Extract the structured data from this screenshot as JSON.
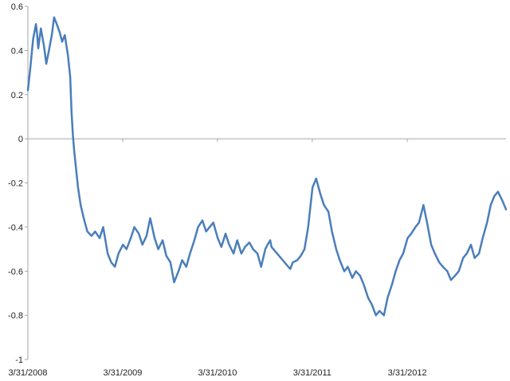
{
  "chart_data": {
    "type": "line",
    "title": "",
    "xlabel": "",
    "ylabel": "",
    "ylim": [
      -1,
      0.6
    ],
    "yticks": [
      -1,
      -0.8,
      -0.6,
      -0.4,
      -0.2,
      0,
      0.2,
      0.4,
      0.6
    ],
    "ytick_labels": [
      "-1",
      "-0.8",
      "-0.6",
      "-0.4",
      "-0.2",
      "0",
      "0.2",
      "0.4",
      "0.6"
    ],
    "x_dates": [
      "2008-03-31",
      "2009-03-31",
      "2010-03-31",
      "2011-03-31",
      "2012-03-31"
    ],
    "xtick_labels": [
      "3/31/2008",
      "3/31/2009",
      "3/31/2010",
      "3/31/2011",
      "3/31/2012"
    ],
    "xlim": [
      "2008-03-31",
      "2013-04-15"
    ],
    "grid": false,
    "legend": "none",
    "colors": {
      "series": "#4a7ebb",
      "axis": "#a6a6a6"
    },
    "series": [
      {
        "x": [
          "2008-03-31",
          "2008-04-10",
          "2008-04-20",
          "2008-05-01",
          "2008-05-05",
          "2008-05-10",
          "2008-05-20",
          "2008-06-01",
          "2008-06-10",
          "2008-06-20",
          "2008-07-01",
          "2008-07-10",
          "2008-07-20",
          "2008-08-01",
          "2008-08-10",
          "2008-08-20",
          "2008-09-01",
          "2008-09-10",
          "2008-09-15",
          "2008-09-20",
          "2008-09-25",
          "2008-10-01",
          "2008-10-10",
          "2008-10-20",
          "2008-11-01",
          "2008-11-15",
          "2008-12-01",
          "2008-12-15",
          "2009-01-01",
          "2009-01-15",
          "2009-02-01",
          "2009-02-15",
          "2009-03-01",
          "2009-03-15",
          "2009-04-01",
          "2009-04-15",
          "2009-05-01",
          "2009-05-15",
          "2009-06-01",
          "2009-06-15",
          "2009-07-01",
          "2009-07-15",
          "2009-08-01",
          "2009-08-15",
          "2009-09-01",
          "2009-09-15",
          "2009-10-01",
          "2009-10-15",
          "2009-11-01",
          "2009-11-15",
          "2009-12-01",
          "2009-12-15",
          "2010-01-01",
          "2010-01-15",
          "2010-02-01",
          "2010-02-15",
          "2010-03-01",
          "2010-03-15",
          "2010-04-01",
          "2010-04-15",
          "2010-05-01",
          "2010-05-15",
          "2010-06-01",
          "2010-06-15",
          "2010-07-01",
          "2010-07-15",
          "2010-08-01",
          "2010-08-15",
          "2010-09-01",
          "2010-09-15",
          "2010-10-01",
          "2010-10-10",
          "2010-10-20",
          "2010-10-25",
          "2011-01-05",
          "2011-01-15",
          "2011-02-01",
          "2011-02-15",
          "2011-03-01",
          "2011-03-15",
          "2011-04-01",
          "2011-04-15",
          "2011-05-01",
          "2011-05-15",
          "2011-06-01",
          "2011-06-15",
          "2011-07-01",
          "2011-07-15",
          "2011-08-01",
          "2011-08-15",
          "2011-09-01",
          "2011-09-15",
          "2011-10-01",
          "2011-10-15",
          "2011-11-01",
          "2011-11-15",
          "2011-12-01",
          "2011-12-15",
          "2012-01-01",
          "2012-01-15",
          "2012-02-01",
          "2012-02-15",
          "2012-03-01",
          "2012-03-15",
          "2012-04-01",
          "2012-04-15",
          "2012-05-01",
          "2012-05-15",
          "2012-06-01",
          "2012-06-15",
          "2012-07-01",
          "2012-07-15",
          "2012-08-01",
          "2012-08-15",
          "2012-09-01",
          "2012-09-15",
          "2012-10-01",
          "2012-10-15",
          "2012-11-01",
          "2012-11-15",
          "2012-12-01",
          "2012-12-15",
          "2013-01-01",
          "2013-01-15",
          "2013-02-01",
          "2013-02-15",
          "2013-03-01",
          "2013-03-15",
          "2013-04-01",
          "2013-04-15"
        ],
        "y": [
          0.22,
          0.33,
          0.45,
          0.52,
          0.48,
          0.41,
          0.5,
          0.42,
          0.34,
          0.4,
          0.47,
          0.55,
          0.52,
          0.48,
          0.44,
          0.47,
          0.38,
          0.28,
          0.12,
          0.02,
          -0.05,
          -0.12,
          -0.22,
          -0.3,
          -0.36,
          -0.42,
          -0.44,
          -0.42,
          -0.45,
          -0.4,
          -0.52,
          -0.56,
          -0.58,
          -0.52,
          -0.48,
          -0.5,
          -0.45,
          -0.4,
          -0.43,
          -0.48,
          -0.44,
          -0.36,
          -0.45,
          -0.5,
          -0.46,
          -0.53,
          -0.56,
          -0.65,
          -0.6,
          -0.55,
          -0.58,
          -0.52,
          -0.46,
          -0.4,
          -0.37,
          -0.42,
          -0.4,
          -0.38,
          -0.45,
          -0.49,
          -0.43,
          -0.48,
          -0.52,
          -0.46,
          -0.52,
          -0.49,
          -0.47,
          -0.5,
          -0.52,
          -0.58,
          -0.5,
          -0.48,
          -0.46,
          -0.49,
          -0.59,
          -0.56,
          -0.55,
          -0.53,
          -0.5,
          -0.4,
          -0.22,
          -0.18,
          -0.25,
          -0.3,
          -0.33,
          -0.42,
          -0.5,
          -0.55,
          -0.6,
          -0.58,
          -0.63,
          -0.6,
          -0.62,
          -0.66,
          -0.72,
          -0.75,
          -0.8,
          -0.78,
          -0.8,
          -0.72,
          -0.66,
          -0.6,
          -0.55,
          -0.52,
          -0.45,
          -0.43,
          -0.4,
          -0.38,
          -0.3,
          -0.38,
          -0.48,
          -0.52,
          -0.56,
          -0.58,
          -0.6,
          -0.64,
          -0.62,
          -0.6,
          -0.54,
          -0.52,
          -0.48,
          -0.54,
          -0.52,
          -0.45,
          -0.38,
          -0.3,
          -0.26,
          -0.24,
          -0.28,
          -0.32
        ]
      }
    ]
  }
}
